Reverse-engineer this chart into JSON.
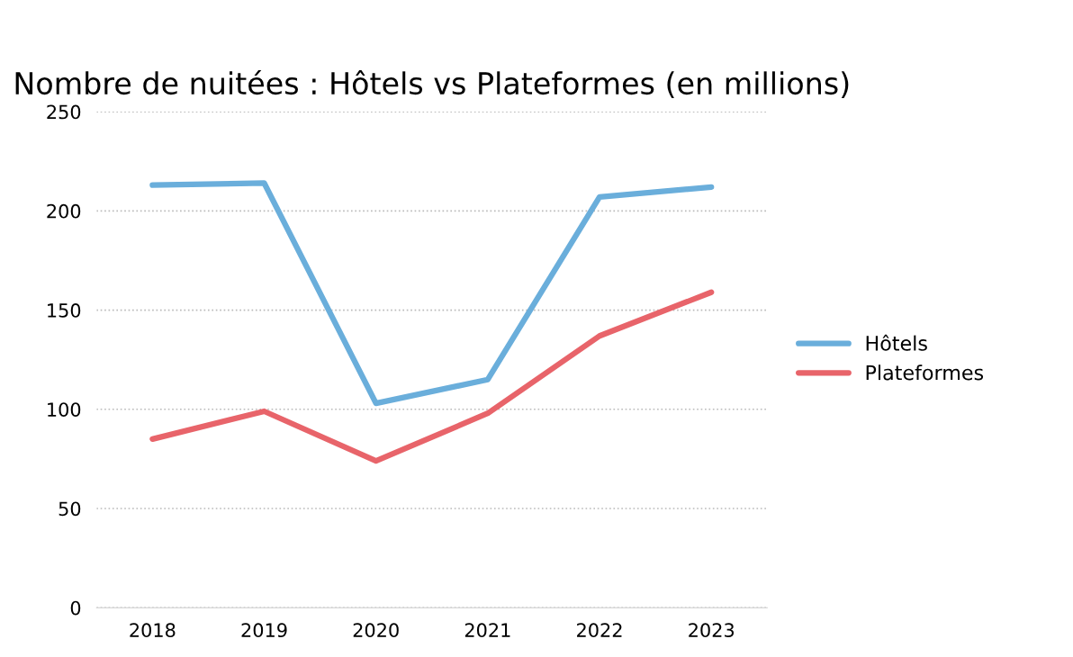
{
  "chart_data": {
    "type": "line",
    "title": "Nombre de nuitées : Hôtels vs Plateformes (en millions)",
    "categories": [
      "2018",
      "2019",
      "2020",
      "2021",
      "2022",
      "2023"
    ],
    "series": [
      {
        "name": "Hôtels",
        "color": "#6aaedb",
        "values": [
          213,
          214,
          103,
          115,
          207,
          212
        ]
      },
      {
        "name": "Plateformes",
        "color": "#e8646a",
        "values": [
          85,
          99,
          74,
          98,
          137,
          159
        ]
      }
    ],
    "ylim": [
      0,
      250
    ],
    "yticks": [
      0,
      50,
      100,
      150,
      200,
      250
    ],
    "grid": "y",
    "legend": "right",
    "marker": "none",
    "line_style": "solid"
  }
}
